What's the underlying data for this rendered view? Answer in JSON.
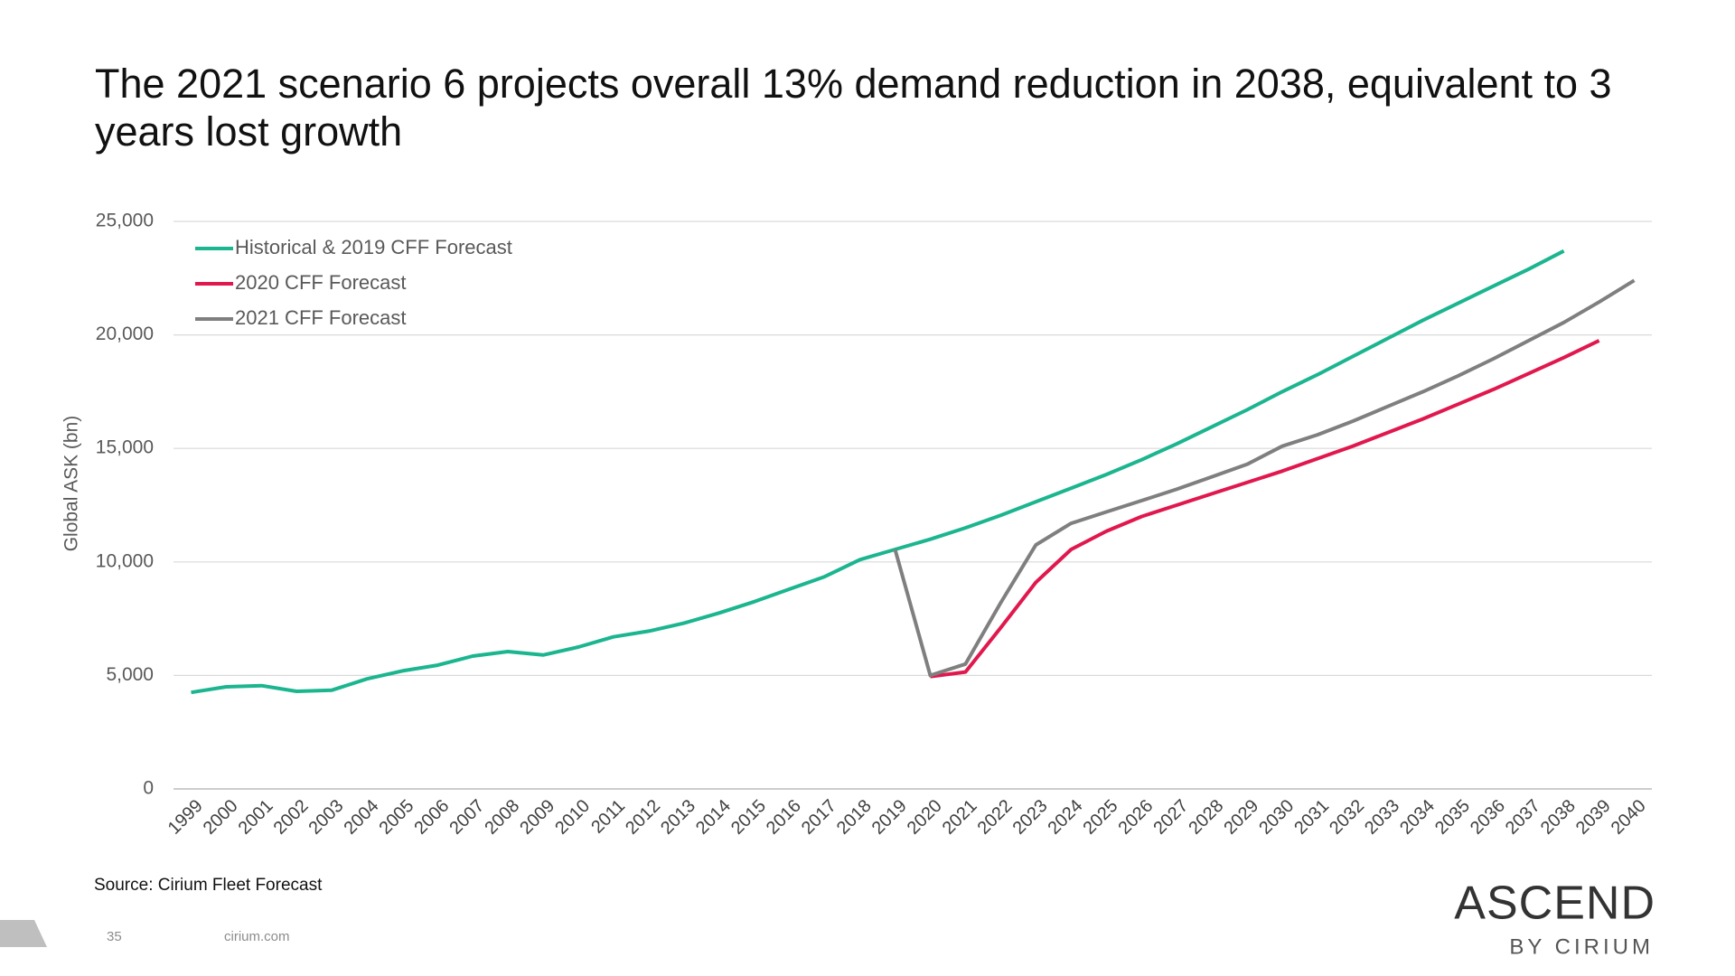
{
  "chart_data": {
    "type": "line",
    "title": "The 2021 scenario 6 projects overall 13% demand reduction in 2038, equivalent to 3 years lost growth",
    "y_label": "Global ASK (bn)",
    "source": "Source: Cirium Fleet Forecast",
    "categories": [
      "1999",
      "2000",
      "2001",
      "2002",
      "2003",
      "2004",
      "2005",
      "2006",
      "2007",
      "2008",
      "2009",
      "2010",
      "2011",
      "2012",
      "2013",
      "2014",
      "2015",
      "2016",
      "2017",
      "2018",
      "2019",
      "2020",
      "2021",
      "2022",
      "2023",
      "2024",
      "2025",
      "2026",
      "2027",
      "2028",
      "2029",
      "2030",
      "2031",
      "2032",
      "2033",
      "2034",
      "2035",
      "2036",
      "2037",
      "2038",
      "2039",
      "2040"
    ],
    "series": [
      {
        "name": "Historical & 2019 CFF Forecast",
        "color": "#1bb58f",
        "values": [
          4250,
          4500,
          4550,
          4300,
          4350,
          4850,
          5200,
          5450,
          5850,
          6050,
          5900,
          6250,
          6700,
          6950,
          7300,
          7750,
          8250,
          8800,
          9350,
          10100,
          10550,
          11000,
          11500,
          12050,
          12650,
          13250,
          13850,
          14500,
          15200,
          15950,
          16700,
          17500,
          18250,
          19050,
          19850,
          20650,
          21400,
          22150,
          22900,
          23700,
          null,
          null
        ]
      },
      {
        "name": "2020 CFF Forecast",
        "color": "#e0184d",
        "values": [
          null,
          null,
          null,
          null,
          null,
          null,
          null,
          null,
          null,
          null,
          null,
          null,
          null,
          null,
          null,
          null,
          null,
          null,
          null,
          null,
          null,
          4950,
          5150,
          7100,
          9100,
          10550,
          11350,
          12000,
          12500,
          13000,
          13500,
          14000,
          14550,
          15100,
          15700,
          16300,
          16950,
          17600,
          18300,
          19000,
          19750,
          null
        ]
      },
      {
        "name": "2021 CFF Forecast",
        "color": "#7f7f7f",
        "values": [
          null,
          null,
          null,
          null,
          null,
          null,
          null,
          null,
          null,
          null,
          null,
          null,
          null,
          null,
          null,
          null,
          null,
          null,
          null,
          null,
          10550,
          5000,
          5500,
          8200,
          10750,
          11700,
          12200,
          12700,
          13200,
          13750,
          14300,
          15100,
          15600,
          16200,
          16850,
          17500,
          18200,
          18950,
          19750,
          20550,
          21450,
          22400
        ]
      }
    ],
    "ylim": [
      0,
      25000
    ],
    "yticks": [
      0,
      {
        "value": 5000,
        "label": "5,000"
      },
      {
        "value": 10000,
        "label": "10,000"
      },
      {
        "value": 15000,
        "label": "15,000"
      },
      {
        "value": 20000,
        "label": "20,000"
      },
      {
        "value": 25000,
        "label": "25,000"
      }
    ],
    "grid": true,
    "legend": "upper left"
  },
  "footer": {
    "page_number": "35",
    "site": "cirium.com"
  },
  "logo": {
    "name": "ASCEND",
    "sub": "BY CIRIUM"
  }
}
